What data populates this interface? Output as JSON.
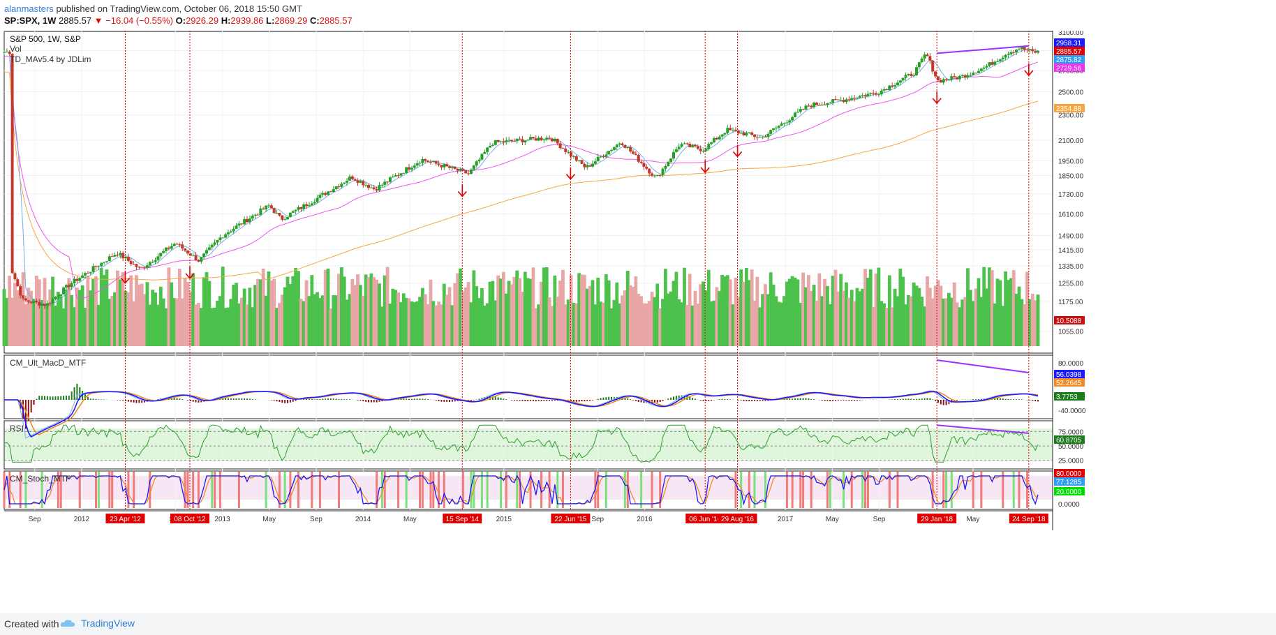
{
  "header": {
    "user": "alanmasters",
    "published": "published on TradingView.com, October 06, 2018 15:50 GMT",
    "symbol": "SP:SPX, 1W",
    "price": "2885.57",
    "change": "▼ −16.04 (−0.55%)",
    "o_label": "O:",
    "o": "2926.29",
    "h_label": "H:",
    "h": "2939.86",
    "l_label": "L:",
    "l": "2869.29",
    "c_label": "C:",
    "c": "2885.57"
  },
  "footer": {
    "created_with": "Created with",
    "brand": "TradingView"
  },
  "colors": {
    "up": "#4cc14c",
    "down": "#e8a6a6",
    "downCandle": "#c0392b",
    "upCandle": "#27a02a",
    "ma1": "#ee55ee",
    "ma2": "#f7a63f",
    "fast": "#7aaee6",
    "macd": "#1a1aff",
    "signal": "#f28c28",
    "rsi": "#2c9e2c",
    "divergence": "#9b30ff",
    "marker": "#e00000"
  },
  "chart_data": [
    {
      "panel": "price",
      "type": "candlestick",
      "title": "S&P 500, 1W, S&P",
      "legend": [
        "Vol",
        "TD_MAv5.4 by JDLim"
      ],
      "scale": "log",
      "ylim": [
        1000,
        3100
      ],
      "y_ticks": [
        "3100.00",
        "2900.00",
        "2700.00",
        "2500.00",
        "2300.00",
        "2100.00",
        "1950.00",
        "1850.00",
        "1730.00",
        "1610.00",
        "1490.00",
        "1415.00",
        "1335.00",
        "1255.00",
        "1175.00",
        "1055.00"
      ],
      "x_ticks": [
        "Sep",
        "2012",
        "Sep",
        "2013",
        "May",
        "Sep",
        "2014",
        "May",
        "2015",
        "Sep",
        "2016",
        "Sep",
        "2017",
        "May",
        "Sep",
        "May"
      ],
      "close_anchors": [
        {
          "date": "2011-07",
          "v": 1320
        },
        {
          "date": "2011-08",
          "v": 1180
        },
        {
          "date": "2011-10",
          "v": 1160
        },
        {
          "date": "2011-12",
          "v": 1250
        },
        {
          "date": "2012-04",
          "v": 1400
        },
        {
          "date": "2012-06",
          "v": 1320
        },
        {
          "date": "2012-09",
          "v": 1450
        },
        {
          "date": "2012-11",
          "v": 1360
        },
        {
          "date": "2013-01",
          "v": 1490
        },
        {
          "date": "2013-05",
          "v": 1660
        },
        {
          "date": "2013-06",
          "v": 1580
        },
        {
          "date": "2013-09",
          "v": 1700
        },
        {
          "date": "2013-12",
          "v": 1840
        },
        {
          "date": "2014-02",
          "v": 1760
        },
        {
          "date": "2014-06",
          "v": 1960
        },
        {
          "date": "2014-10",
          "v": 1860
        },
        {
          "date": "2014-12",
          "v": 2080
        },
        {
          "date": "2015-05",
          "v": 2120
        },
        {
          "date": "2015-08",
          "v": 1900
        },
        {
          "date": "2015-11",
          "v": 2090
        },
        {
          "date": "2016-02",
          "v": 1830
        },
        {
          "date": "2016-04",
          "v": 2070
        },
        {
          "date": "2016-06",
          "v": 2030
        },
        {
          "date": "2016-08",
          "v": 2180
        },
        {
          "date": "2016-11",
          "v": 2120
        },
        {
          "date": "2017-03",
          "v": 2380
        },
        {
          "date": "2017-06",
          "v": 2430
        },
        {
          "date": "2017-09",
          "v": 2500
        },
        {
          "date": "2017-12",
          "v": 2680
        },
        {
          "date": "2018-01",
          "v": 2870
        },
        {
          "date": "2018-02",
          "v": 2600
        },
        {
          "date": "2018-04",
          "v": 2640
        },
        {
          "date": "2018-06",
          "v": 2730
        },
        {
          "date": "2018-08",
          "v": 2880
        },
        {
          "date": "2018-09",
          "v": 2930
        },
        {
          "date": "2018-10",
          "v": 2885.57
        }
      ],
      "events": [
        {
          "label": "23 Apr '12",
          "date": "2012-04-23"
        },
        {
          "label": "08 Oct '12",
          "date": "2012-10-08"
        },
        {
          "label": "15 Sep '14",
          "date": "2014-09-15"
        },
        {
          "label": "22 Jun '15",
          "date": "2015-06-22"
        },
        {
          "label": "06 Jun '16",
          "date": "2016-06-06"
        },
        {
          "label": "29 Aug '16",
          "date": "2016-08-29"
        },
        {
          "label": "29 Jan '18",
          "date": "2018-01-29"
        },
        {
          "label": "24 Sep '18",
          "date": "2018-09-24"
        }
      ],
      "price_labels": [
        {
          "text": "2958.31",
          "color": "#1a1aff"
        },
        {
          "text": "2885.57",
          "color": "#e00000"
        },
        {
          "text": "2875.82",
          "color": "#2e9df2"
        },
        {
          "text": "2729.56",
          "color": "#ee33ee"
        },
        {
          "text": "2354.88",
          "color": "#f7a63f"
        },
        {
          "text": "10.5088",
          "color": "#c81010"
        }
      ],
      "divergence": [
        {
          "from": {
            "date": "2018-01-29",
            "v": 2872
          },
          "to": {
            "date": "2018-09-24",
            "v": 2950
          }
        }
      ]
    },
    {
      "panel": "macd",
      "type": "line",
      "title": "CM_Ult_MacD_MTF",
      "y_ticks": [
        "80.0000",
        "-40.0000"
      ],
      "labels": [
        {
          "text": "56.0398",
          "color": "#1a1aff"
        },
        {
          "text": "52.2645",
          "color": "#f28c28"
        },
        {
          "text": "3.7753",
          "color": "#1d7a1d"
        }
      ]
    },
    {
      "panel": "rsi",
      "type": "line",
      "title": "RSI",
      "ylim": [
        15,
        90
      ],
      "y_ticks": [
        "75.0000",
        "50.0000",
        "25.0000"
      ],
      "labels": [
        {
          "text": "60.8705",
          "color": "#1d7a1d"
        }
      ]
    },
    {
      "panel": "stoch",
      "type": "line",
      "title": "CM_Stoch_MTF",
      "y_ticks": [
        "50.0000",
        "0.0000"
      ],
      "labels": [
        {
          "text": "80.0000",
          "color": "#e00000"
        },
        {
          "text": "77.1285",
          "color": "#2e9df2"
        },
        {
          "text": "20.0000",
          "color": "#00dd00"
        }
      ]
    }
  ]
}
